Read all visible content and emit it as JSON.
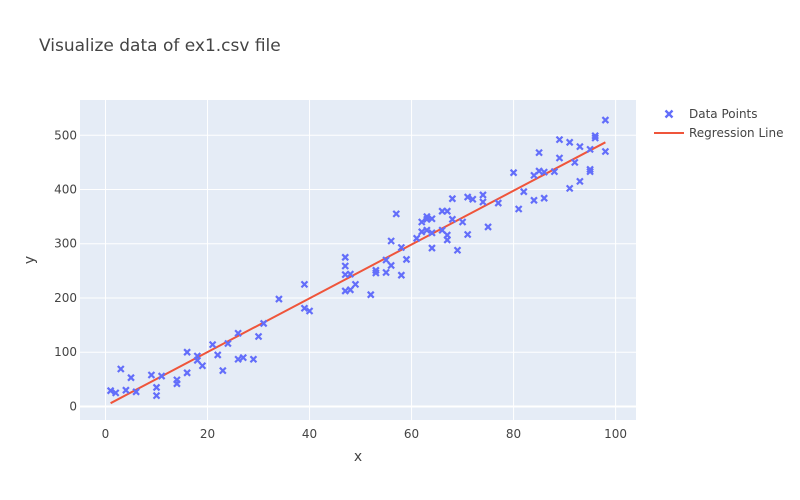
{
  "chart_data": {
    "type": "scatter",
    "title": "Visualize data of ex1.csv file",
    "xlabel": "x",
    "ylabel": "y",
    "xlim": [
      -5,
      104
    ],
    "ylim": [
      -25,
      565
    ],
    "x_ticks": [
      0,
      20,
      40,
      60,
      80,
      100
    ],
    "y_ticks": [
      0,
      100,
      200,
      300,
      400,
      500
    ],
    "grid": true,
    "legend_position": "top-right",
    "series": [
      {
        "name": "Data Points",
        "mode": "markers",
        "marker": "x",
        "color": "#636efa",
        "x": [
          1,
          2,
          3,
          4,
          5,
          6,
          9,
          10,
          10,
          11,
          14,
          14,
          16,
          16,
          18,
          18,
          19,
          21,
          22,
          23,
          24,
          26,
          26,
          27,
          29,
          30,
          31,
          34,
          39,
          39,
          40,
          47,
          47,
          47,
          47,
          48,
          48,
          49,
          52,
          53,
          53,
          55,
          55,
          56,
          56,
          57,
          58,
          58,
          59,
          61,
          62,
          62,
          63,
          63,
          63,
          64,
          64,
          64,
          66,
          66,
          67,
          67,
          67,
          68,
          68,
          69,
          70,
          71,
          71,
          72,
          74,
          74,
          75,
          77,
          80,
          81,
          82,
          84,
          84,
          85,
          85,
          86,
          86,
          88,
          89,
          89,
          91,
          91,
          92,
          93,
          93,
          95,
          95,
          95,
          96,
          96,
          98,
          98
        ],
        "y": [
          29,
          25,
          69,
          30,
          53,
          27,
          58,
          35,
          20,
          56,
          49,
          42,
          62,
          100,
          85,
          93,
          75,
          114,
          95,
          66,
          116,
          135,
          87,
          90,
          87,
          129,
          153,
          198,
          225,
          181,
          176,
          243,
          275,
          259,
          213,
          244,
          215,
          225,
          206,
          251,
          246,
          270,
          247,
          260,
          305,
          355,
          293,
          242,
          271,
          310,
          322,
          340,
          345,
          350,
          325,
          346,
          292,
          320,
          360,
          325,
          360,
          316,
          307,
          345,
          383,
          288,
          340,
          386,
          317,
          382,
          390,
          377,
          331,
          375,
          431,
          364,
          396,
          426,
          380,
          468,
          434,
          432,
          384,
          433,
          492,
          458,
          487,
          402,
          450,
          479,
          415,
          474,
          437,
          433,
          499,
          495,
          528,
          470
        ]
      },
      {
        "name": "Regression Line",
        "mode": "lines",
        "color": "#ef553b",
        "x": [
          1,
          98
        ],
        "y": [
          6,
          487
        ]
      }
    ]
  }
}
